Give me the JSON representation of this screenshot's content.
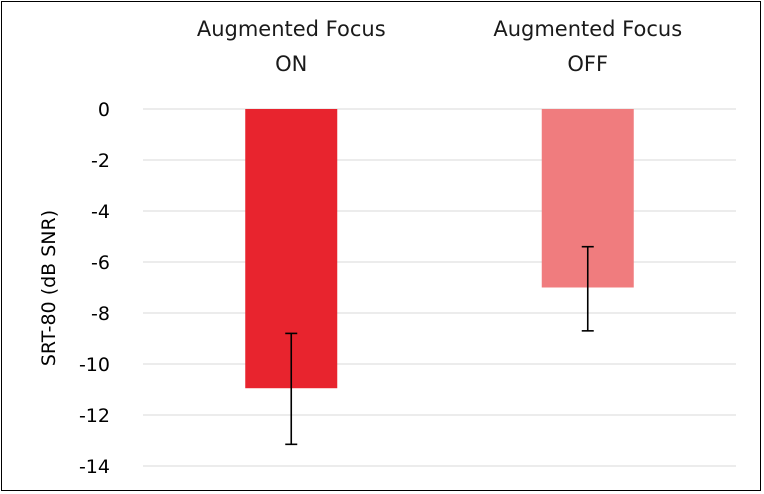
{
  "chart_data": {
    "type": "bar",
    "categories": [
      [
        "Augmented Focus",
        "ON"
      ],
      [
        "Augmented Focus",
        "OFF"
      ]
    ],
    "values": [
      -10.95,
      -7.0
    ],
    "error_bars": [
      {
        "low": -13.15,
        "high": -8.8
      },
      {
        "low": -8.7,
        "high": -5.4
      }
    ],
    "bar_colors": [
      "#e8242e",
      "#f07c7e"
    ],
    "error_bar_color": "#000000",
    "gridline_color": "#d9d9d9",
    "ylabel": "SRT-80 (dB SNR)",
    "xlabel": "",
    "title": "",
    "ylim": [
      -14,
      0
    ],
    "yticks": [
      "0",
      "-2",
      "-4",
      "-6",
      "-8",
      "-10",
      "-12",
      "-14"
    ],
    "ytick_values": [
      0,
      -2,
      -4,
      -6,
      -8,
      -10,
      -12,
      -14
    ],
    "category_axis_position": "top",
    "grid": true
  }
}
